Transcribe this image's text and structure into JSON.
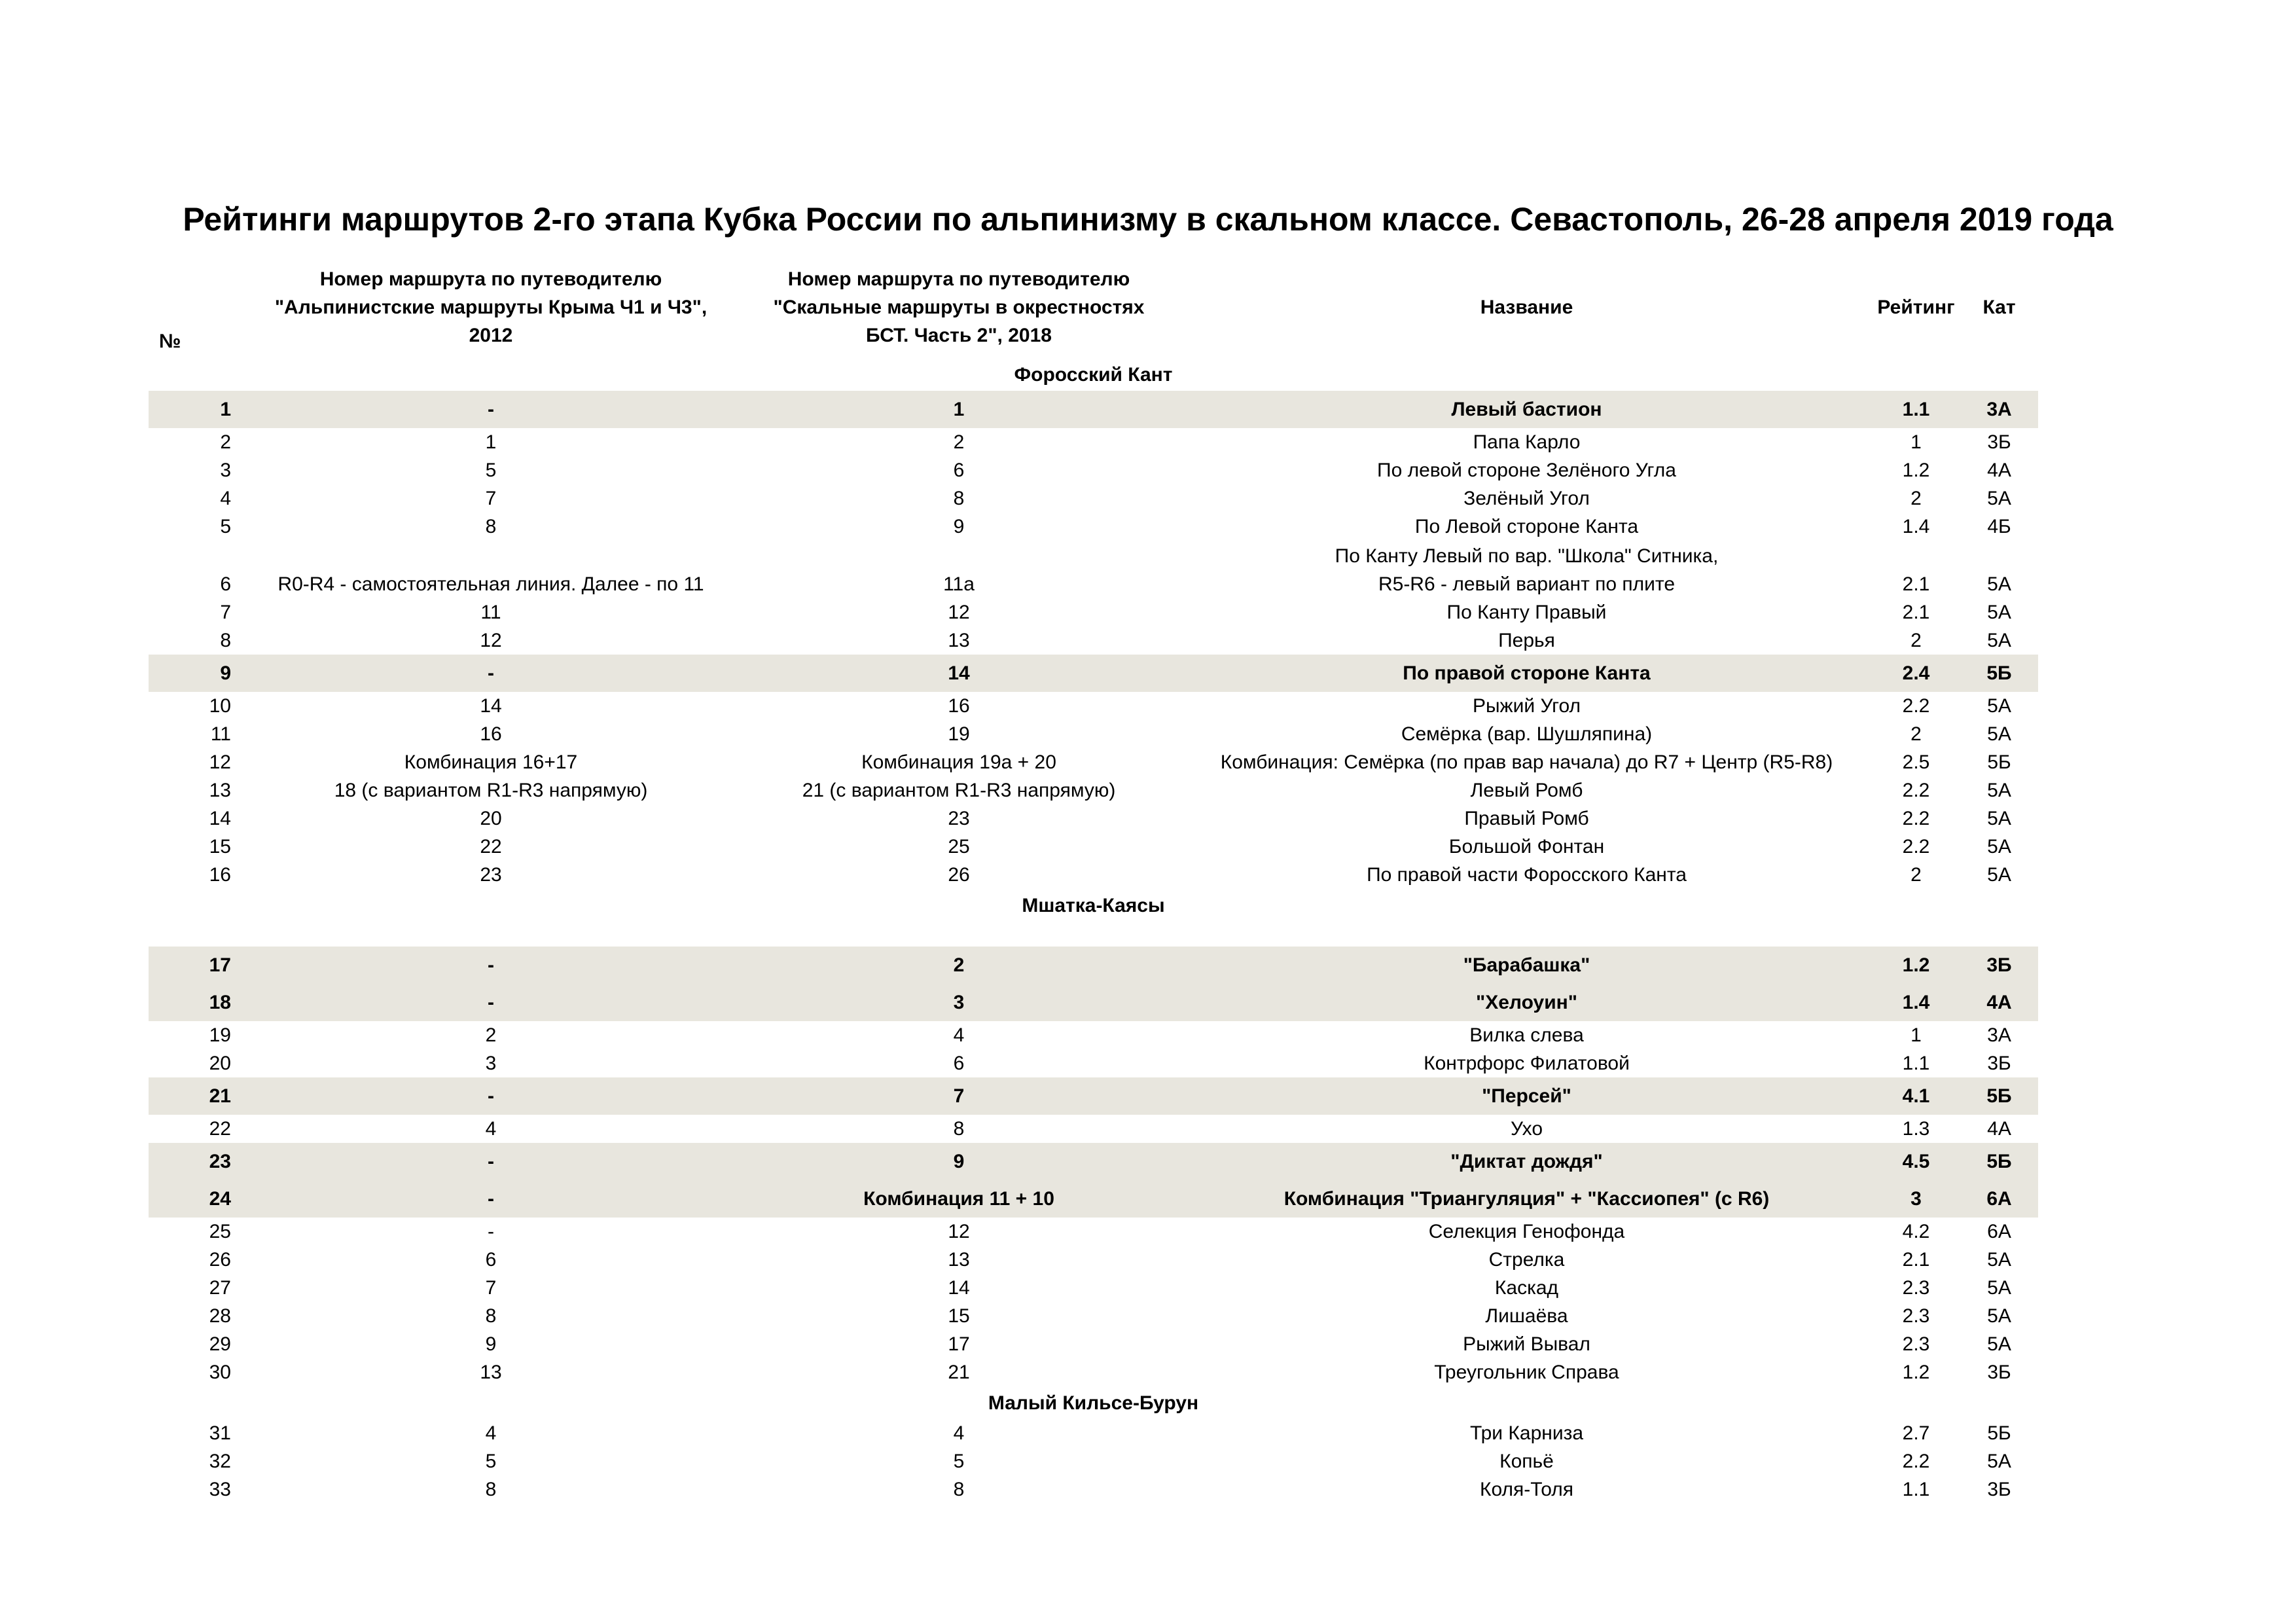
{
  "title": "Рейтинги маршрутов 2-го этапа Кубка России по альпинизму в скальном классе. Севастополь, 26-28 апреля 2019 года",
  "columns": {
    "num": "№",
    "guide_2012": "Номер маршрута по путеводителю\n\"Альпинистские маршруты Крыма Ч1 и Ч3\",\n2012",
    "guide_2018": "Номер маршрута по путеводителю\n\"Скальные маршруты в окрестностях\nБСТ. Часть 2\", 2018",
    "name": "Название",
    "rating": "Рейтинг",
    "category": "Кат"
  },
  "highlight_color": "#e8e6de",
  "sections": [
    {
      "name": "Форосский Кант",
      "spacer_after_name": false,
      "rows": [
        {
          "num": "1",
          "guide_2012": "-",
          "guide_2018": "1",
          "name": "Левый бастион",
          "rating": "1.1",
          "category": "3А",
          "highlighted": true
        },
        {
          "num": "2",
          "guide_2012": "1",
          "guide_2018": "2",
          "name": "Папа Карло",
          "rating": "1",
          "category": "3Б",
          "highlighted": false
        },
        {
          "num": "3",
          "guide_2012": "5",
          "guide_2018": "6",
          "name": "По левой стороне Зелёного Угла",
          "rating": "1.2",
          "category": "4А",
          "highlighted": false
        },
        {
          "num": "4",
          "guide_2012": "7",
          "guide_2018": "8",
          "name": "Зелёный Угол",
          "rating": "2",
          "category": "5А",
          "highlighted": false
        },
        {
          "num": "5",
          "guide_2012": "8",
          "guide_2018": "9",
          "name": "По Левой стороне Канта",
          "rating": "1.4",
          "category": "4Б",
          "highlighted": false
        },
        {
          "num": "6",
          "guide_2012": "R0-R4 - самостоятельная линия. Далее - по 11",
          "guide_2018": "11а",
          "name": "По Канту Левый по вар. \"Школа\" Ситника,\nR5-R6 - левый вариант по плите",
          "rating": "2.1",
          "category": "5А",
          "highlighted": false
        },
        {
          "num": "7",
          "guide_2012": "11",
          "guide_2018": "12",
          "name": "По Канту Правый",
          "rating": "2.1",
          "category": "5А",
          "highlighted": false
        },
        {
          "num": "8",
          "guide_2012": "12",
          "guide_2018": "13",
          "name": "Перья",
          "rating": "2",
          "category": "5А",
          "highlighted": false
        },
        {
          "num": "9",
          "guide_2012": "-",
          "guide_2018": "14",
          "name": "По правой стороне Канта",
          "rating": "2.4",
          "category": "5Б",
          "highlighted": true
        },
        {
          "num": "10",
          "guide_2012": "14",
          "guide_2018": "16",
          "name": "Рыжий Угол",
          "rating": "2.2",
          "category": "5А",
          "highlighted": false
        },
        {
          "num": "11",
          "guide_2012": "16",
          "guide_2018": "19",
          "name": "Семёрка (вар. Шушляпина)",
          "rating": "2",
          "category": "5А",
          "highlighted": false
        },
        {
          "num": "12",
          "guide_2012": "Комбинация 16+17",
          "guide_2018": "Комбинация 19а + 20",
          "name": "Комбинация: Семёрка (по прав вар начала) до R7 + Центр (R5-R8)",
          "rating": "2.5",
          "category": "5Б",
          "highlighted": false
        },
        {
          "num": "13",
          "guide_2012": "18 (с вариантом R1-R3 напрямую)",
          "guide_2018": "21 (с вариантом R1-R3 напрямую)",
          "name": "Левый Ромб",
          "rating": "2.2",
          "category": "5А",
          "highlighted": false
        },
        {
          "num": "14",
          "guide_2012": "20",
          "guide_2018": "23",
          "name": "Правый Ромб",
          "rating": "2.2",
          "category": "5А",
          "highlighted": false
        },
        {
          "num": "15",
          "guide_2012": "22",
          "guide_2018": "25",
          "name": "Большой Фонтан",
          "rating": "2.2",
          "category": "5А",
          "highlighted": false
        },
        {
          "num": "16",
          "guide_2012": "23",
          "guide_2018": "26",
          "name": "По правой части Форосского Канта",
          "rating": "2",
          "category": "5А",
          "highlighted": false
        }
      ]
    },
    {
      "name": "Мшатка-Каясы",
      "spacer_after_name": true,
      "rows": [
        {
          "num": "17",
          "guide_2012": "-",
          "guide_2018": "2",
          "name": "\"Барабашка\"",
          "rating": "1.2",
          "category": "3Б",
          "highlighted": true
        },
        {
          "num": "18",
          "guide_2012": "-",
          "guide_2018": "3",
          "name": "\"Хелоуин\"",
          "rating": "1.4",
          "category": "4А",
          "highlighted": true
        },
        {
          "num": "19",
          "guide_2012": "2",
          "guide_2018": "4",
          "name": "Вилка слева",
          "rating": "1",
          "category": "3А",
          "highlighted": false
        },
        {
          "num": "20",
          "guide_2012": "3",
          "guide_2018": "6",
          "name": "Контрфорс Филатовой",
          "rating": "1.1",
          "category": "3Б",
          "highlighted": false
        },
        {
          "num": "21",
          "guide_2012": "-",
          "guide_2018": "7",
          "name": "\"Персей\"",
          "rating": "4.1",
          "category": "5Б",
          "highlighted": true
        },
        {
          "num": "22",
          "guide_2012": "4",
          "guide_2018": "8",
          "name": "Ухо",
          "rating": "1.3",
          "category": "4А",
          "highlighted": false
        },
        {
          "num": "23",
          "guide_2012": "-",
          "guide_2018": "9",
          "name": "\"Диктат дождя\"",
          "rating": "4.5",
          "category": "5Б",
          "highlighted": true
        },
        {
          "num": "24",
          "guide_2012": "-",
          "guide_2018": "Комбинация 11 + 10",
          "name": "Комбинация \"Триангуляция\" + \"Кассиопея\" (с R6)",
          "rating": "3",
          "category": "6А",
          "highlighted": true
        },
        {
          "num": "25",
          "guide_2012": "-",
          "guide_2018": "12",
          "name": "Селекция Генофонда",
          "rating": "4.2",
          "category": "6А",
          "highlighted": false
        },
        {
          "num": "26",
          "guide_2012": "6",
          "guide_2018": "13",
          "name": "Стрелка",
          "rating": "2.1",
          "category": "5А",
          "highlighted": false
        },
        {
          "num": "27",
          "guide_2012": "7",
          "guide_2018": "14",
          "name": "Каскад",
          "rating": "2.3",
          "category": "5А",
          "highlighted": false
        },
        {
          "num": "28",
          "guide_2012": "8",
          "guide_2018": "15",
          "name": "Лишаёва",
          "rating": "2.3",
          "category": "5А",
          "highlighted": false
        },
        {
          "num": "29",
          "guide_2012": "9",
          "guide_2018": "17",
          "name": "Рыжий Вывал",
          "rating": "2.3",
          "category": "5А",
          "highlighted": false
        },
        {
          "num": "30",
          "guide_2012": "13",
          "guide_2018": "21",
          "name": "Треугольник Справа",
          "rating": "1.2",
          "category": "3Б",
          "highlighted": false
        }
      ]
    },
    {
      "name": "Малый Кильсе-Бурун",
      "spacer_after_name": false,
      "rows": [
        {
          "num": "31",
          "guide_2012": "4",
          "guide_2018": "4",
          "name": "Три Карниза",
          "rating": "2.7",
          "category": "5Б",
          "highlighted": false
        },
        {
          "num": "32",
          "guide_2012": "5",
          "guide_2018": "5",
          "name": "Копьё",
          "rating": "2.2",
          "category": "5А",
          "highlighted": false
        },
        {
          "num": "33",
          "guide_2012": "8",
          "guide_2018": "8",
          "name": "Коля-Толя",
          "rating": "1.1",
          "category": "3Б",
          "highlighted": false
        }
      ]
    }
  ]
}
